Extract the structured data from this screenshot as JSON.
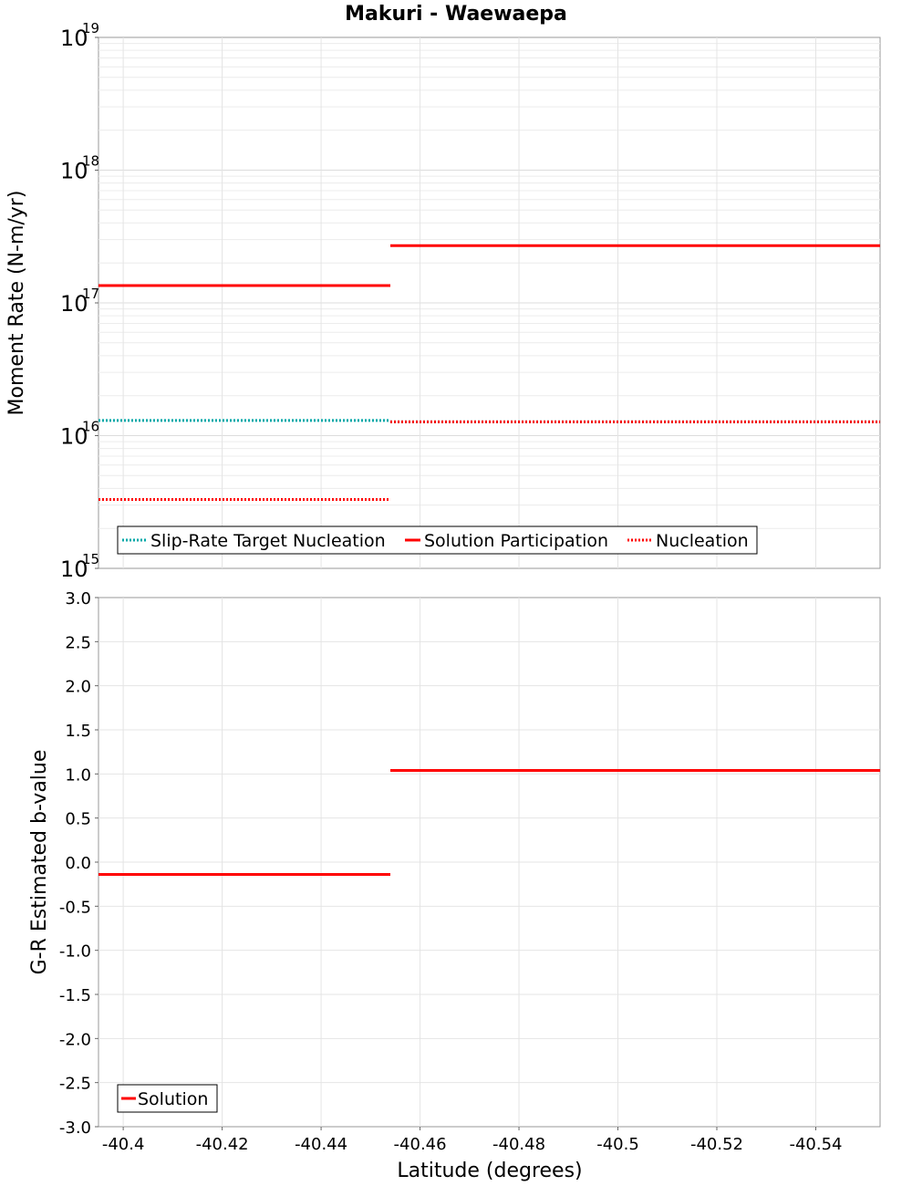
{
  "chart_data": {
    "title": "Makuri - Waewaepa",
    "xlabel": "Latitude (degrees)",
    "xlim": [
      -40.395,
      -40.553
    ],
    "xticks": [
      -40.4,
      -40.42,
      -40.44,
      -40.46,
      -40.48,
      -40.5,
      -40.52,
      -40.54
    ],
    "xtick_labels": [
      "-40.4",
      "-40.42",
      "-40.44",
      "-40.46",
      "-40.48",
      "-40.5",
      "-40.52",
      "-40.54"
    ],
    "panels": [
      {
        "id": "moment",
        "type": "line",
        "ylabel": "Moment Rate (N-m/yr)",
        "yscale": "log",
        "ylim_exp": [
          15,
          19
        ],
        "ytick_base": "10",
        "ytick_exponents": [
          "15",
          "16",
          "17",
          "18",
          "19"
        ],
        "series": [
          {
            "name": "Slip-Rate Target Nucleation",
            "color": "#00a8a8",
            "style": "dotted",
            "segments": [
              {
                "x0": -40.395,
                "x1": -40.454,
                "y": 1.3e+16
              },
              {
                "x0": -40.454,
                "x1": -40.553,
                "y": 1.27e+16
              }
            ]
          },
          {
            "name": "Solution Participation",
            "color": "#ff0000",
            "style": "solid",
            "segments": [
              {
                "x0": -40.395,
                "x1": -40.454,
                "y": 1.35e+17
              },
              {
                "x0": -40.454,
                "x1": -40.553,
                "y": 2.7e+17
              }
            ]
          },
          {
            "name": "Nucleation",
            "color": "#ff0000",
            "style": "dotted",
            "segments": [
              {
                "x0": -40.395,
                "x1": -40.454,
                "y": 3300000000000000.0
              },
              {
                "x0": -40.454,
                "x1": -40.553,
                "y": 1.27e+16
              }
            ]
          }
        ],
        "legend": [
          "Slip-Rate Target Nucleation",
          "Solution Participation",
          "Nucleation"
        ],
        "legend_position": "bottom-left"
      },
      {
        "id": "bvalue",
        "type": "line",
        "ylabel": "G-R Estimated b-value",
        "yscale": "linear",
        "ylim": [
          -3.0,
          3.0
        ],
        "yticks": [
          3.0,
          2.5,
          2.0,
          1.5,
          1.0,
          0.5,
          0.0,
          -0.5,
          -1.0,
          -1.5,
          -2.0,
          -2.5,
          -3.0
        ],
        "ytick_labels": [
          "3.0",
          "2.5",
          "2.0",
          "1.5",
          "1.0",
          "0.5",
          "0.0",
          "-0.5",
          "-1.0",
          "-1.5",
          "-2.0",
          "-2.5",
          "-3.0"
        ],
        "series": [
          {
            "name": "Solution",
            "color": "#ff0000",
            "style": "solid",
            "segments": [
              {
                "x0": -40.395,
                "x1": -40.454,
                "y": -0.14
              },
              {
                "x0": -40.454,
                "x1": -40.553,
                "y": 1.04
              }
            ]
          }
        ],
        "legend": [
          "Solution"
        ],
        "legend_position": "bottom-left"
      }
    ]
  }
}
